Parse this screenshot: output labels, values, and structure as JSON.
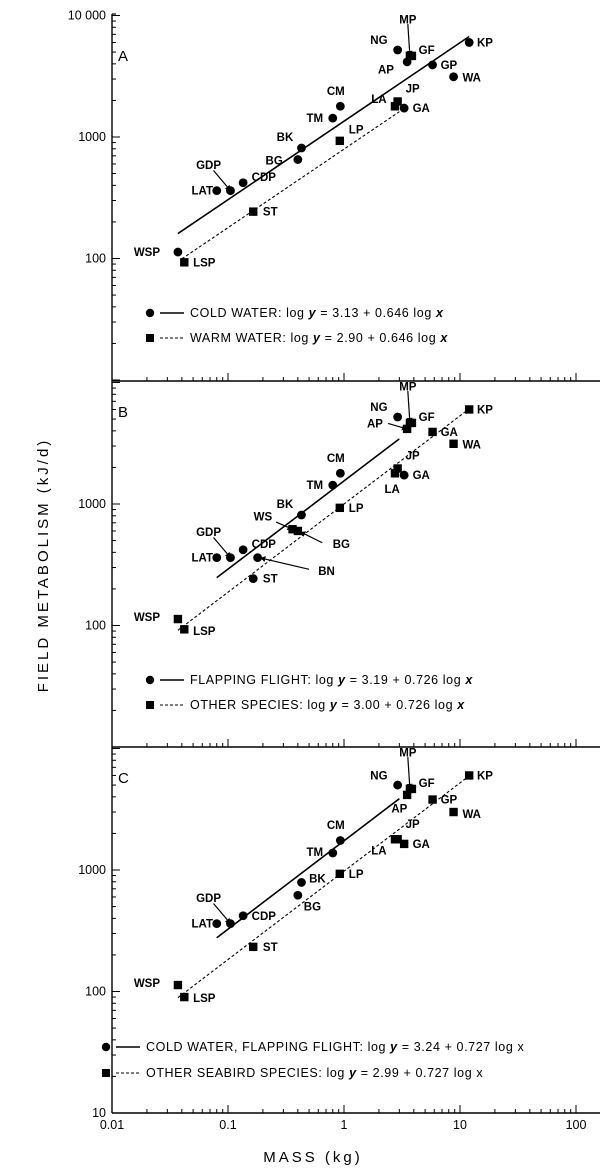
{
  "figure": {
    "y_title": "FIELD METABOLISM (kJ/d)",
    "x_title": "MASS (kg)",
    "x_ticks": [
      "0.01",
      "0.1",
      "1",
      "10",
      "100"
    ],
    "x_tick_values": [
      0.01,
      0.1,
      1,
      10,
      100
    ],
    "colors": {
      "ink": "#000000",
      "background": "#ffffff"
    }
  },
  "chart_data": [
    {
      "panel": "A",
      "type": "scatter",
      "xscale": "log",
      "yscale": "log",
      "xlim": [
        0.01,
        100
      ],
      "ylim": [
        10,
        10000
      ],
      "y_ticks": [
        "100",
        "1000",
        "10 000"
      ],
      "y_tick_values": [
        100,
        1000,
        10000
      ],
      "series": [
        {
          "marker": "circle",
          "line": "solid",
          "legend": {
            "prefix": "COLD WATER: log ",
            "y": "y",
            "eq": " = 3.13 + 0.646 log ",
            "x": "x"
          },
          "fit": {
            "intercept": 3.13,
            "slope": 0.646,
            "xrange": [
              0.037,
              12
            ]
          },
          "points": [
            {
              "label": "WSP",
              "x": 0.037,
              "y": 113
            },
            {
              "label": "LAT",
              "x": 0.08,
              "y": 362
            },
            {
              "label": "GDP",
              "x": 0.105,
              "y": 362
            },
            {
              "label": "CDP",
              "x": 0.135,
              "y": 420
            },
            {
              "label": "BG",
              "x": 0.4,
              "y": 652
            },
            {
              "label": "BK",
              "x": 0.43,
              "y": 812
            },
            {
              "label": "TM",
              "x": 0.8,
              "y": 1430
            },
            {
              "label": "CM",
              "x": 0.93,
              "y": 1790
            },
            {
              "label": "GA",
              "x": 3.3,
              "y": 1730
            },
            {
              "label": "NG",
              "x": 2.9,
              "y": 5200
            },
            {
              "label": "AP",
              "x": 3.5,
              "y": 4150
            },
            {
              "label": "GP",
              "x": 5.8,
              "y": 3920
            },
            {
              "label": "WA",
              "x": 8.8,
              "y": 3130
            },
            {
              "label": "KP",
              "x": 12,
              "y": 6000
            }
          ]
        },
        {
          "marker": "square",
          "line": "dashed",
          "legend": {
            "prefix": "WARM WATER: log ",
            "y": "y",
            "eq": " = 2.90 + 0.646 log ",
            "x": "x"
          },
          "fit": {
            "intercept": 2.9,
            "slope": 0.646,
            "xrange": [
              0.04,
              3.0
            ]
          },
          "points": [
            {
              "label": "LSP",
              "x": 0.042,
              "y": 93
            },
            {
              "label": "ST",
              "x": 0.165,
              "y": 243
            },
            {
              "label": "LP",
              "x": 0.92,
              "y": 930
            },
            {
              "label": "LA",
              "x": 2.75,
              "y": 1790
            },
            {
              "label": "JP",
              "x": 2.9,
              "y": 1960
            },
            {
              "label": "MP",
              "x": 3.7,
              "y": 4650
            },
            {
              "label": "GF",
              "x": 3.85,
              "y": 4650
            }
          ]
        }
      ],
      "annotations": [
        {
          "text": "MP",
          "at": [
            3.7,
            4650
          ],
          "from_x": 3.55,
          "from_y": 8500,
          "tx": 3.55,
          "ty": 9300,
          "anchor": "middle"
        },
        {
          "text": "GDP",
          "at": [
            0.105,
            362
          ],
          "from_x": 0.075,
          "from_y": 530,
          "tx": 0.068,
          "ty": 590,
          "anchor": "middle"
        }
      ],
      "labels": [
        {
          "text": "NG",
          "x": 2.0,
          "y": 6300,
          "anchor": "middle"
        },
        {
          "text": "GF",
          "x": 4.4,
          "y": 5200,
          "anchor": "start"
        },
        {
          "text": "AP",
          "x": 2.3,
          "y": 3600,
          "anchor": "middle"
        },
        {
          "text": "KP",
          "x": 14,
          "y": 6000,
          "anchor": "start"
        },
        {
          "text": "GP",
          "x": 6.8,
          "y": 3920,
          "anchor": "start"
        },
        {
          "text": "WA",
          "x": 10.5,
          "y": 3100,
          "anchor": "start"
        },
        {
          "text": "JP",
          "x": 3.4,
          "y": 2500,
          "anchor": "start"
        },
        {
          "text": "LA",
          "x": 2.0,
          "y": 2050,
          "anchor": "middle"
        },
        {
          "text": "GA",
          "x": 3.9,
          "y": 1730,
          "anchor": "start"
        },
        {
          "text": "CM",
          "x": 0.85,
          "y": 2400,
          "anchor": "middle"
        },
        {
          "text": "TM",
          "x": 0.56,
          "y": 1430,
          "anchor": "middle"
        },
        {
          "text": "LP",
          "x": 1.1,
          "y": 1150,
          "anchor": "start"
        },
        {
          "text": "BK",
          "x": 0.31,
          "y": 1000,
          "anchor": "middle"
        },
        {
          "text": "BG",
          "x": 0.25,
          "y": 640,
          "anchor": "middle"
        },
        {
          "text": "CDP",
          "x": 0.16,
          "y": 470,
          "anchor": "start"
        },
        {
          "text": "LAT",
          "x": 0.06,
          "y": 362,
          "anchor": "middle"
        },
        {
          "text": "ST",
          "x": 0.2,
          "y": 243,
          "anchor": "start"
        },
        {
          "text": "WSP",
          "x": 0.02,
          "y": 113,
          "anchor": "middle"
        },
        {
          "text": "LSP",
          "x": 0.05,
          "y": 93,
          "anchor": "start"
        }
      ]
    },
    {
      "panel": "B",
      "type": "scatter",
      "xscale": "log",
      "yscale": "log",
      "xlim": [
        0.01,
        100
      ],
      "ylim": [
        10,
        10000
      ],
      "y_ticks": [
        "100",
        "1000"
      ],
      "y_tick_values": [
        100,
        1000
      ],
      "series": [
        {
          "marker": "circle",
          "line": "solid",
          "legend": {
            "prefix": "FLAPPING FLIGHT: log ",
            "y": "y",
            "eq": " = 3.19 + 0.726 log ",
            "x": "x"
          },
          "fit": {
            "intercept": 3.19,
            "slope": 0.726,
            "xrange": [
              0.08,
              3.0
            ]
          },
          "points": [
            {
              "label": "LAT",
              "x": 0.08,
              "y": 362
            },
            {
              "label": "GDP",
              "x": 0.105,
              "y": 362
            },
            {
              "label": "CDP",
              "x": 0.135,
              "y": 420
            },
            {
              "label": "ST",
              "x": 0.165,
              "y": 243
            },
            {
              "label": "BN",
              "x": 0.18,
              "y": 362
            },
            {
              "label": "BK",
              "x": 0.43,
              "y": 812
            },
            {
              "label": "TM",
              "x": 0.8,
              "y": 1430
            },
            {
              "label": "CM",
              "x": 0.93,
              "y": 1790
            },
            {
              "label": "NG",
              "x": 2.9,
              "y": 5200
            },
            {
              "label": "GA",
              "x": 3.3,
              "y": 1730
            }
          ]
        },
        {
          "marker": "square",
          "line": "dashed",
          "legend": {
            "prefix": "OTHER SPECIES: log ",
            "y": "y",
            "eq": " = 3.00 + 0.726 log ",
            "x": "x"
          },
          "fit": {
            "intercept": 3.0,
            "slope": 0.726,
            "xrange": [
              0.037,
              12
            ]
          },
          "points": [
            {
              "label": "WSP",
              "x": 0.037,
              "y": 113
            },
            {
              "label": "LSP",
              "x": 0.042,
              "y": 93
            },
            {
              "label": "WS",
              "x": 0.36,
              "y": 620
            },
            {
              "label": "BG",
              "x": 0.4,
              "y": 600
            },
            {
              "label": "LP",
              "x": 0.92,
              "y": 930
            },
            {
              "label": "LA",
              "x": 2.75,
              "y": 1790
            },
            {
              "label": "JP",
              "x": 2.9,
              "y": 1960
            },
            {
              "label": "AP",
              "x": 3.5,
              "y": 4150
            },
            {
              "label": "MP",
              "x": 3.7,
              "y": 4650
            },
            {
              "label": "GF",
              "x": 3.85,
              "y": 4650
            },
            {
              "label": "GA",
              "x": 5.8,
              "y": 3920
            },
            {
              "label": "WA",
              "x": 8.8,
              "y": 3130
            },
            {
              "label": "KP",
              "x": 12,
              "y": 6000
            }
          ]
        }
      ],
      "annotations": [
        {
          "text": "MP",
          "at": [
            3.7,
            4650
          ],
          "from_x": 3.55,
          "from_y": 8500,
          "tx": 3.55,
          "ty": 9300,
          "anchor": "middle"
        },
        {
          "text": "AP",
          "at": [
            3.5,
            4150
          ],
          "from_x": 2.4,
          "from_y": 4600,
          "tx": 1.85,
          "ty": 4600,
          "anchor": "middle"
        },
        {
          "text": "GDP",
          "at": [
            0.105,
            362
          ],
          "from_x": 0.075,
          "from_y": 530,
          "tx": 0.068,
          "ty": 590,
          "anchor": "middle"
        },
        {
          "text": "WS",
          "at": [
            0.36,
            620
          ],
          "from_x": 0.26,
          "from_y": 710,
          "tx": 0.2,
          "ty": 790,
          "anchor": "middle"
        },
        {
          "text": "BG",
          "at": [
            0.42,
            590
          ],
          "from_x": 0.65,
          "from_y": 480,
          "tx": 0.8,
          "ty": 470,
          "anchor": "start"
        },
        {
          "text": "BN",
          "at": [
            0.19,
            360
          ],
          "from_x": 0.5,
          "from_y": 290,
          "tx": 0.6,
          "ty": 280,
          "anchor": "start"
        }
      ],
      "labels": [
        {
          "text": "NG",
          "x": 2.0,
          "y": 6300,
          "anchor": "middle"
        },
        {
          "text": "GF",
          "x": 4.4,
          "y": 5200,
          "anchor": "start"
        },
        {
          "text": "KP",
          "x": 14,
          "y": 6000,
          "anchor": "start"
        },
        {
          "text": "GA",
          "x": 6.8,
          "y": 3920,
          "anchor": "start"
        },
        {
          "text": "WA",
          "x": 10.5,
          "y": 3100,
          "anchor": "start"
        },
        {
          "text": "JP",
          "x": 3.4,
          "y": 2500,
          "anchor": "start"
        },
        {
          "text": "LA",
          "x": 2.6,
          "y": 1330,
          "anchor": "middle"
        },
        {
          "text": "GA",
          "x": 3.9,
          "y": 1730,
          "anchor": "start"
        },
        {
          "text": "CM",
          "x": 0.85,
          "y": 2400,
          "anchor": "middle"
        },
        {
          "text": "TM",
          "x": 0.56,
          "y": 1430,
          "anchor": "middle"
        },
        {
          "text": "LP",
          "x": 1.1,
          "y": 930,
          "anchor": "start"
        },
        {
          "text": "BK",
          "x": 0.31,
          "y": 1000,
          "anchor": "middle"
        },
        {
          "text": "CDP",
          "x": 0.16,
          "y": 470,
          "anchor": "start"
        },
        {
          "text": "LAT",
          "x": 0.06,
          "y": 362,
          "anchor": "middle"
        },
        {
          "text": "ST",
          "x": 0.2,
          "y": 243,
          "anchor": "start"
        },
        {
          "text": "WSP",
          "x": 0.02,
          "y": 118,
          "anchor": "middle"
        },
        {
          "text": "LSP",
          "x": 0.05,
          "y": 90,
          "anchor": "start"
        }
      ]
    },
    {
      "panel": "C",
      "type": "scatter",
      "xscale": "log",
      "yscale": "log",
      "xlim": [
        0.01,
        100
      ],
      "ylim": [
        10,
        10000
      ],
      "y_ticks": [
        "10",
        "100",
        "1000"
      ],
      "y_tick_values": [
        10,
        100,
        1000
      ],
      "series": [
        {
          "marker": "circle",
          "line": "solid",
          "legend": {
            "prefix": "COLD WATER, FLAPPING FLIGHT: log ",
            "y": "y",
            "eq": " = 3.24 + 0.727 log x",
            "x": ""
          },
          "fit": {
            "intercept": 3.24,
            "slope": 0.727,
            "xrange": [
              0.08,
              3.0
            ]
          },
          "points": [
            {
              "label": "LAT",
              "x": 0.08,
              "y": 362
            },
            {
              "label": "GDP",
              "x": 0.105,
              "y": 362
            },
            {
              "label": "CDP",
              "x": 0.135,
              "y": 420
            },
            {
              "label": "BG",
              "x": 0.4,
              "y": 620
            },
            {
              "label": "BK",
              "x": 0.43,
              "y": 790
            },
            {
              "label": "TM",
              "x": 0.8,
              "y": 1380
            },
            {
              "label": "CM",
              "x": 0.93,
              "y": 1750
            },
            {
              "label": "NG",
              "x": 2.9,
              "y": 5000
            }
          ]
        },
        {
          "marker": "square",
          "line": "dashed",
          "legend": {
            "prefix": "OTHER SEABIRD SPECIES: log ",
            "y": "y",
            "eq": " = 2.99 + 0.727 log x",
            "x": ""
          },
          "fit": {
            "intercept": 2.99,
            "slope": 0.727,
            "xrange": [
              0.037,
              12
            ]
          },
          "points": [
            {
              "label": "WSP",
              "x": 0.037,
              "y": 113
            },
            {
              "label": "LSP",
              "x": 0.042,
              "y": 90
            },
            {
              "label": "ST",
              "x": 0.165,
              "y": 233
            },
            {
              "label": "LP",
              "x": 0.92,
              "y": 930
            },
            {
              "label": "LA",
              "x": 2.75,
              "y": 1790
            },
            {
              "label": "JP",
              "x": 2.9,
              "y": 1790
            },
            {
              "label": "GA",
              "x": 3.3,
              "y": 1640
            },
            {
              "label": "AP",
              "x": 3.5,
              "y": 4150
            },
            {
              "label": "MP",
              "x": 3.7,
              "y": 4650
            },
            {
              "label": "GF",
              "x": 3.85,
              "y": 4650
            },
            {
              "label": "GP",
              "x": 5.8,
              "y": 3800
            },
            {
              "label": "WA",
              "x": 8.8,
              "y": 3000
            },
            {
              "label": "KP",
              "x": 12,
              "y": 6000
            }
          ]
        }
      ],
      "annotations": [
        {
          "text": "MP",
          "at": [
            3.7,
            4650
          ],
          "from_x": 3.55,
          "from_y": 8500,
          "tx": 3.55,
          "ty": 9300,
          "anchor": "middle"
        },
        {
          "text": "GDP",
          "at": [
            0.105,
            362
          ],
          "from_x": 0.075,
          "from_y": 530,
          "tx": 0.068,
          "ty": 590,
          "anchor": "middle"
        }
      ],
      "labels": [
        {
          "text": "NG",
          "x": 2.0,
          "y": 6000,
          "anchor": "middle"
        },
        {
          "text": "GF",
          "x": 4.4,
          "y": 5200,
          "anchor": "start"
        },
        {
          "text": "AP",
          "x": 3.0,
          "y": 3200,
          "anchor": "middle"
        },
        {
          "text": "KP",
          "x": 14,
          "y": 6000,
          "anchor": "start"
        },
        {
          "text": "GP",
          "x": 6.8,
          "y": 3800,
          "anchor": "start"
        },
        {
          "text": "WA",
          "x": 10.5,
          "y": 2900,
          "anchor": "start"
        },
        {
          "text": "JP",
          "x": 3.4,
          "y": 2400,
          "anchor": "start"
        },
        {
          "text": "LA",
          "x": 2.0,
          "y": 1450,
          "anchor": "middle"
        },
        {
          "text": "GA",
          "x": 3.9,
          "y": 1640,
          "anchor": "start"
        },
        {
          "text": "CM",
          "x": 0.85,
          "y": 2350,
          "anchor": "middle"
        },
        {
          "text": "TM",
          "x": 0.56,
          "y": 1400,
          "anchor": "middle"
        },
        {
          "text": "LP",
          "x": 1.1,
          "y": 930,
          "anchor": "start"
        },
        {
          "text": "BK",
          "x": 0.5,
          "y": 850,
          "anchor": "start"
        },
        {
          "text": "BG",
          "x": 0.45,
          "y": 500,
          "anchor": "start"
        },
        {
          "text": "CDP",
          "x": 0.16,
          "y": 420,
          "anchor": "start"
        },
        {
          "text": "LAT",
          "x": 0.06,
          "y": 362,
          "anchor": "middle"
        },
        {
          "text": "ST",
          "x": 0.2,
          "y": 233,
          "anchor": "start"
        },
        {
          "text": "WSP",
          "x": 0.02,
          "y": 118,
          "anchor": "middle"
        },
        {
          "text": "LSP",
          "x": 0.05,
          "y": 88,
          "anchor": "start"
        }
      ]
    }
  ]
}
